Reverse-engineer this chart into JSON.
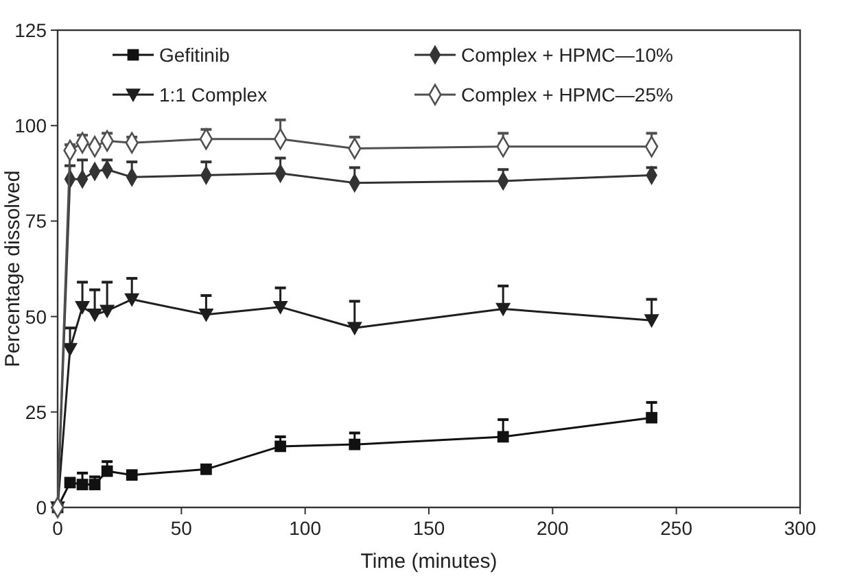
{
  "chart_data": {
    "type": "line",
    "xlabel": "Time (minutes)",
    "ylabel": "Percentage dissolved",
    "x": [
      0,
      5,
      10,
      15,
      20,
      30,
      60,
      90,
      120,
      180,
      240
    ],
    "xlim": [
      0,
      300
    ],
    "xticks": [
      0,
      50,
      100,
      150,
      200,
      250,
      300
    ],
    "ylim": [
      0,
      125
    ],
    "yticks": [
      0,
      25,
      50,
      75,
      100,
      125
    ],
    "grid": false,
    "legend": "top",
    "series": [
      {
        "name": "Gefitinib",
        "color": "#111111",
        "marker": "square",
        "values": [
          0,
          6.5,
          6,
          6,
          9.5,
          8.5,
          10,
          16,
          16.5,
          18.5,
          23.5
        ],
        "errors": [
          null,
          null,
          [
            6,
            9
          ],
          [
            6,
            8
          ],
          [
            9.5,
            12
          ],
          null,
          null,
          [
            16,
            18.5
          ],
          [
            16.5,
            19.5
          ],
          [
            18.5,
            23
          ],
          [
            23.5,
            27.5
          ]
        ]
      },
      {
        "name": "1:1 Complex",
        "color": "#1e1e1e",
        "marker": "triangle",
        "values": [
          0,
          41.5,
          52.5,
          50.5,
          51.5,
          54.5,
          50.5,
          52.5,
          47,
          52,
          49
        ],
        "errors": [
          null,
          [
            41.5,
            47
          ],
          [
            52.5,
            59
          ],
          [
            50.5,
            57
          ],
          [
            51.5,
            59
          ],
          [
            54.5,
            60
          ],
          [
            50.5,
            55.5
          ],
          [
            52.5,
            57.5
          ],
          [
            47,
            54
          ],
          [
            52,
            58
          ],
          [
            49,
            54.5
          ]
        ]
      },
      {
        "name": "Complex + HPMC—10%",
        "color": "#333333",
        "marker": "diamond",
        "values": [
          0,
          86,
          86,
          88,
          88.5,
          86.5,
          87,
          87.5,
          85,
          85.5,
          87
        ],
        "errors": [
          null,
          [
            86,
            89.5
          ],
          [
            86,
            91
          ],
          null,
          [
            88.5,
            91
          ],
          [
            86.5,
            90.5
          ],
          [
            87,
            90.5
          ],
          [
            87.5,
            91.5
          ],
          [
            85,
            89
          ],
          [
            85.5,
            88.5
          ],
          [
            87,
            89
          ]
        ]
      },
      {
        "name": "Complex + HPMC—25%",
        "color": "#505050",
        "marker": "diamond",
        "values": [
          0,
          93.5,
          95.5,
          94.5,
          96,
          95.5,
          96.5,
          96.5,
          94,
          94.5,
          94.5
        ],
        "errors": [
          null,
          [
            93.5,
            95
          ],
          [
            95.5,
            97.5
          ],
          [
            94.5,
            95
          ],
          [
            96,
            98
          ],
          [
            95.5,
            97
          ],
          [
            96.5,
            99
          ],
          [
            96.5,
            101.5
          ],
          [
            94,
            97
          ],
          [
            94.5,
            98
          ],
          [
            94.5,
            98
          ]
        ]
      }
    ]
  }
}
